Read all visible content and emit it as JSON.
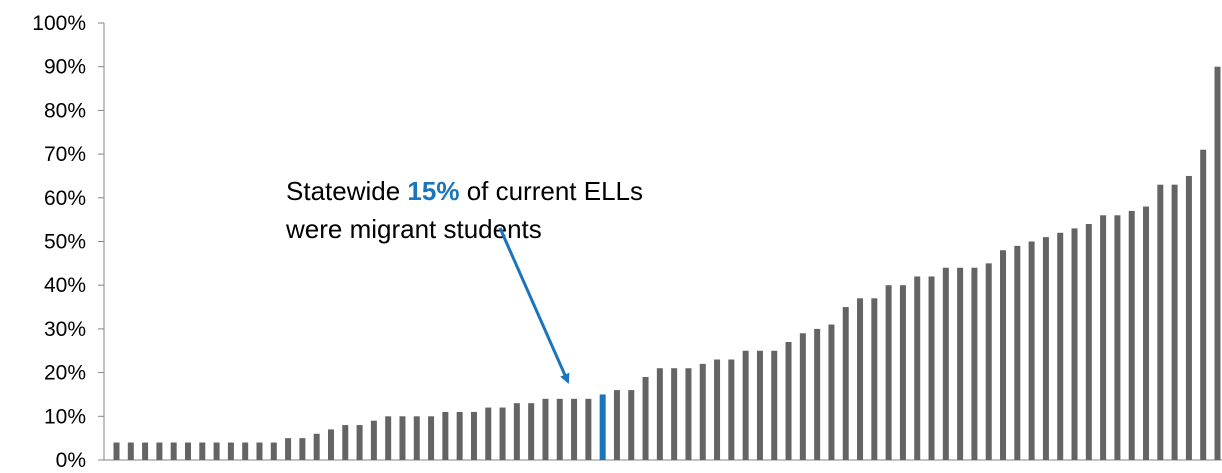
{
  "chart_data": {
    "type": "bar",
    "title": "",
    "xlabel": "",
    "ylabel": "",
    "ylim": [
      0,
      100
    ],
    "yticks": [
      "0%",
      "10%",
      "20%",
      "30%",
      "40%",
      "50%",
      "60%",
      "70%",
      "80%",
      "90%",
      "100%"
    ],
    "values": [
      4,
      4,
      4,
      4,
      4,
      4,
      4,
      4,
      4,
      4,
      4,
      4,
      5,
      5,
      6,
      7,
      8,
      8,
      9,
      10,
      10,
      10,
      10,
      11,
      11,
      11,
      12,
      12,
      13,
      13,
      14,
      14,
      14,
      14,
      15,
      16,
      16,
      19,
      21,
      21,
      21,
      22,
      23,
      23,
      25,
      25,
      25,
      27,
      29,
      30,
      31,
      35,
      37,
      37,
      40,
      40,
      42,
      42,
      44,
      44,
      44,
      45,
      48,
      49,
      50,
      51,
      52,
      53,
      54,
      56,
      56,
      57,
      58,
      63,
      63,
      65,
      71,
      90
    ],
    "highlight_index": 34,
    "bar_color": "#646464",
    "highlight_color": "#1b75bc",
    "grid": false,
    "annotation": {
      "line1_before": "Statewide ",
      "line1_highlight": "15%",
      "line1_after": " of current ELLs",
      "line2": "were migrant students",
      "highlight_color": "#1b75bc"
    }
  }
}
